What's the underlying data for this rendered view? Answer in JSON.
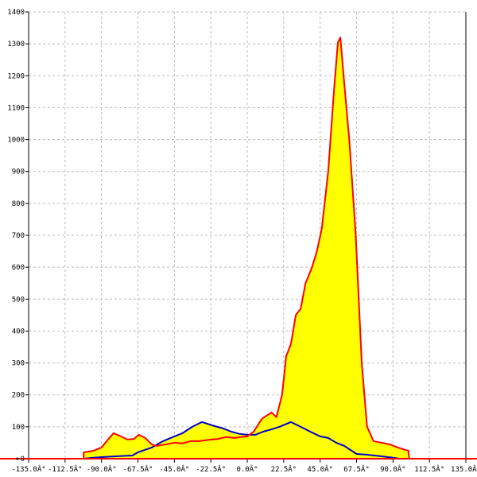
{
  "chart_data": {
    "type": "area",
    "title": "",
    "xlabel": "",
    "ylabel": "",
    "xlim": [
      -135,
      135
    ],
    "ylim": [
      0,
      1400
    ],
    "grid": true,
    "x_ticks": [
      "-135.0Â°",
      "-112.5Â°",
      "-90.0Â°",
      "-67.5Â°",
      "-45.0Â°",
      "-22.5Â°",
      "0.0Â°",
      "22.5Â°",
      "45.0Â°",
      "67.5Â°",
      "90.0Â°",
      "112.5Â°",
      "135.0Â°"
    ],
    "x_tick_values": [
      -135,
      -112.5,
      -90,
      -67.5,
      -45,
      -22.5,
      0,
      22.5,
      45,
      67.5,
      90,
      112.5,
      135
    ],
    "y_ticks": [
      "0",
      "100",
      "200",
      "300",
      "400",
      "500",
      "600",
      "700",
      "800",
      "900",
      "1000",
      "1100",
      "1200",
      "1300",
      "1400"
    ],
    "y_tick_values": [
      0,
      100,
      200,
      300,
      400,
      500,
      600,
      700,
      800,
      900,
      1000,
      1100,
      1200,
      1300,
      1400
    ],
    "fill_color": "#ffff00",
    "series": [
      {
        "color": "#ff0000",
        "points": [
          [
            -135,
            0
          ],
          [
            -101,
            0
          ],
          [
            -101,
            20
          ],
          [
            -95,
            25
          ],
          [
            -90,
            35
          ],
          [
            -86,
            60
          ],
          [
            -82.5,
            80
          ],
          [
            -78,
            70
          ],
          [
            -74,
            60
          ],
          [
            -70,
            62
          ],
          [
            -67,
            75
          ],
          [
            -63,
            65
          ],
          [
            -59,
            45
          ],
          [
            -56,
            40
          ],
          [
            -50,
            45
          ],
          [
            -45,
            50
          ],
          [
            -40,
            48
          ],
          [
            -35,
            55
          ],
          [
            -30,
            55
          ],
          [
            -22.5,
            60
          ],
          [
            -18,
            62
          ],
          [
            -13,
            68
          ],
          [
            -8,
            65
          ],
          [
            -4,
            68
          ],
          [
            0,
            70
          ],
          [
            4,
            85
          ],
          [
            9,
            125
          ],
          [
            15,
            145
          ],
          [
            18,
            130
          ],
          [
            21.5,
            200
          ],
          [
            24,
            320
          ],
          [
            27,
            360
          ],
          [
            30,
            450
          ],
          [
            33,
            470
          ],
          [
            36,
            550
          ],
          [
            40,
            600
          ],
          [
            43,
            650
          ],
          [
            46,
            720
          ],
          [
            50,
            900
          ],
          [
            53.5,
            1150
          ],
          [
            56,
            1305
          ],
          [
            57.5,
            1320
          ],
          [
            59.5,
            1200
          ],
          [
            63,
            1000
          ],
          [
            67,
            700
          ],
          [
            70.7,
            300
          ],
          [
            74,
            100
          ],
          [
            78,
            55
          ],
          [
            83,
            50
          ],
          [
            88,
            45
          ],
          [
            93,
            35
          ],
          [
            99.5,
            25
          ],
          [
            100,
            0
          ],
          [
            135,
            0
          ]
        ]
      },
      {
        "color": "#0000cc",
        "points": [
          [
            -101,
            0
          ],
          [
            -95,
            3
          ],
          [
            -90,
            5
          ],
          [
            -79,
            8
          ],
          [
            -71,
            10
          ],
          [
            -67.5,
            20
          ],
          [
            -59,
            35
          ],
          [
            -52,
            55
          ],
          [
            -45,
            70
          ],
          [
            -40,
            80
          ],
          [
            -34,
            100
          ],
          [
            -28,
            115
          ],
          [
            -22,
            105
          ],
          [
            -15,
            95
          ],
          [
            -10,
            85
          ],
          [
            -5,
            78
          ],
          [
            0,
            75
          ],
          [
            5,
            75
          ],
          [
            10,
            85
          ],
          [
            15,
            92
          ],
          [
            20,
            100
          ],
          [
            27,
            115
          ],
          [
            31,
            105
          ],
          [
            35,
            95
          ],
          [
            40,
            82
          ],
          [
            45,
            70
          ],
          [
            50,
            65
          ],
          [
            55,
            50
          ],
          [
            60,
            40
          ],
          [
            67.5,
            15
          ],
          [
            75,
            12
          ],
          [
            82,
            8
          ],
          [
            90,
            3
          ],
          [
            94,
            0
          ]
        ]
      }
    ]
  }
}
